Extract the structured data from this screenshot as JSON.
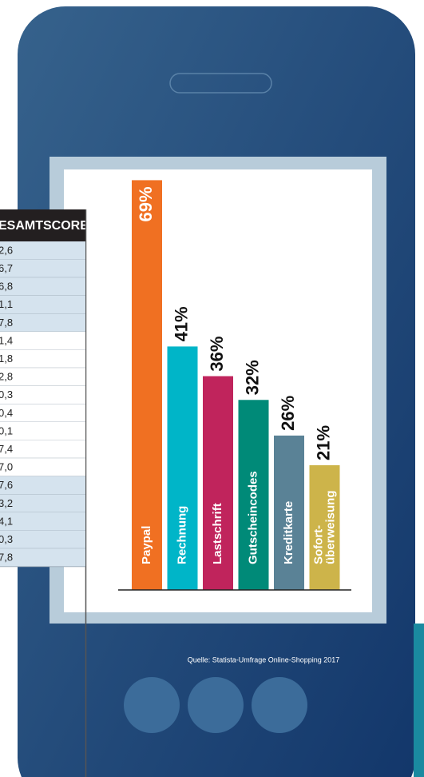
{
  "chart_data": {
    "type": "bar",
    "categories": [
      "Paypal",
      "Rechnung",
      "Lastschrift",
      "Gutscheincodes",
      "Kreditkarte",
      "Sofort-\nüberweisung"
    ],
    "values": [
      69,
      41,
      36,
      32,
      26,
      21
    ],
    "value_labels": [
      "69%",
      "41%",
      "36%",
      "32%",
      "26%",
      "21%"
    ],
    "colors": [
      "#f07022",
      "#00b5c8",
      "#c0245c",
      "#008a78",
      "#5a8296",
      "#cdb44a"
    ],
    "ylim": [
      0,
      70
    ],
    "source": "Quelle: Statista-Umfrage Online-Shopping 2017"
  },
  "table": {
    "header": "ESAMTSCORE",
    "rows": [
      "2,6",
      "6,7",
      "6,8",
      "1,1",
      "7,8",
      "1,4",
      "1,8",
      "2,8",
      "0,3",
      "0,4",
      "0,1",
      "7,4",
      "7,0",
      "7,6",
      "3,2",
      "4,1",
      "0,3",
      "7,8"
    ]
  }
}
